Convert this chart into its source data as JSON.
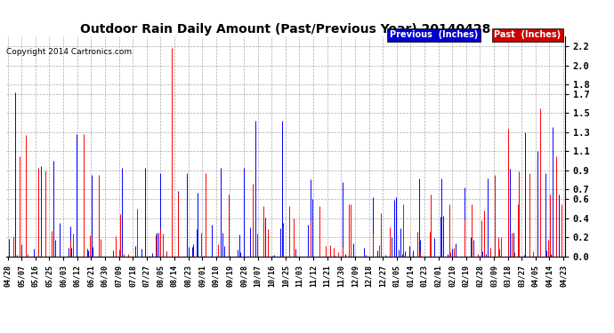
{
  "title": "Outdoor Rain Daily Amount (Past/Previous Year) 20140428",
  "copyright": "Copyright 2014 Cartronics.com",
  "legend_prev": "Previous  (Inches)",
  "legend_past": "Past  (Inches)",
  "legend_prev_bg": "#0000CC",
  "legend_past_bg": "#CC0000",
  "bg_color": "#FFFFFF",
  "plot_bg_color": "#FFFFFF",
  "grid_color": "#AAAAAA",
  "yticks": [
    0.0,
    0.2,
    0.4,
    0.6,
    0.7,
    0.9,
    1.1,
    1.3,
    1.5,
    1.7,
    1.8,
    2.0,
    2.2
  ],
  "ylim": [
    0.0,
    2.3
  ],
  "xtick_labels": [
    "04/28",
    "05/07",
    "05/16",
    "05/25",
    "06/03",
    "06/12",
    "06/21",
    "06/30",
    "07/09",
    "07/18",
    "07/27",
    "08/05",
    "08/14",
    "08/23",
    "09/01",
    "09/10",
    "09/19",
    "09/28",
    "10/07",
    "10/16",
    "10/25",
    "11/03",
    "11/12",
    "11/21",
    "11/30",
    "12/09",
    "12/18",
    "12/27",
    "01/05",
    "01/14",
    "01/23",
    "02/01",
    "02/10",
    "02/19",
    "02/28",
    "03/09",
    "03/18",
    "03/27",
    "04/05",
    "04/14",
    "04/23"
  ],
  "n_points": 366,
  "random_seed": 42
}
